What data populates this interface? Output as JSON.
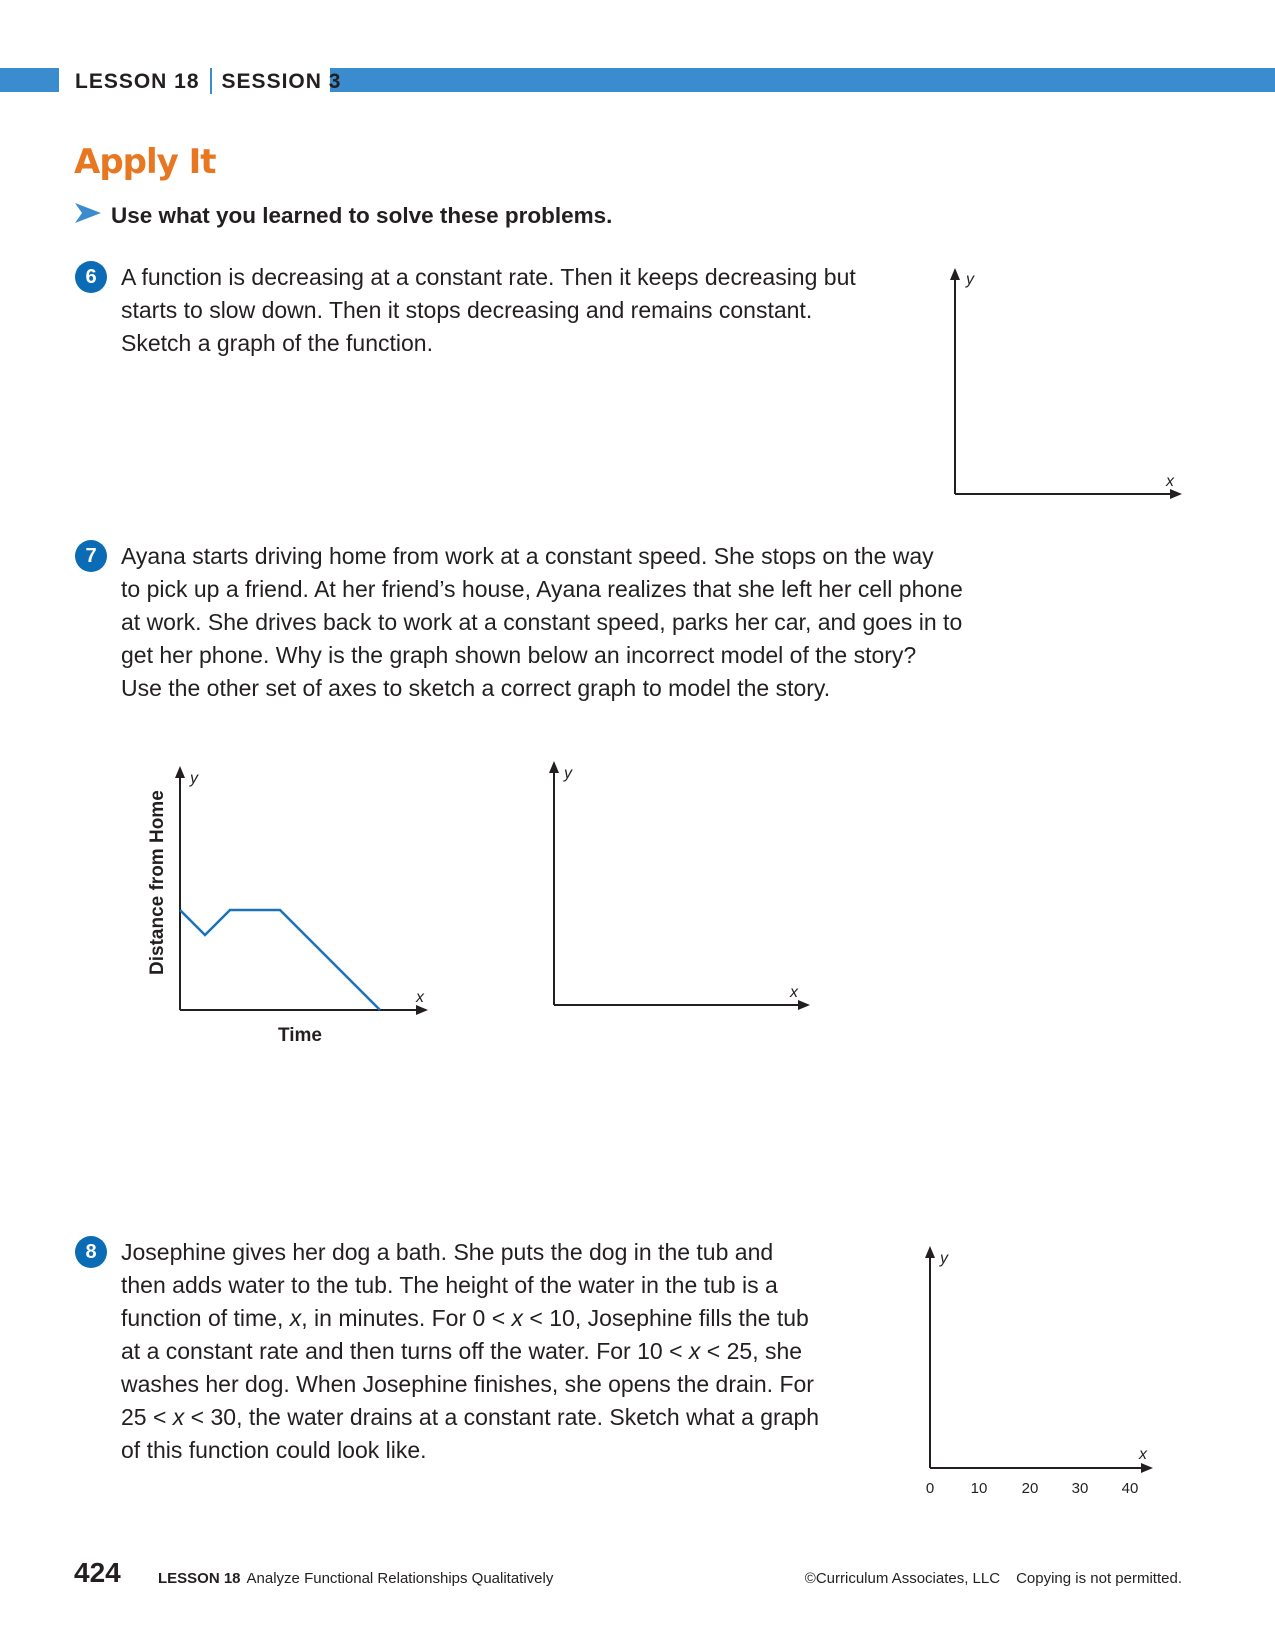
{
  "header": {
    "lesson": "LESSON 18",
    "session": "SESSION 3"
  },
  "title": "Apply It",
  "instruction": "Use what you learned to solve these problems.",
  "problems": [
    {
      "number": "6",
      "lines": [
        "A function is decreasing at a constant rate. Then it keeps decreasing but",
        "starts to slow down. Then it stops decreasing and remains constant.",
        "Sketch a graph of the function."
      ],
      "graph": {
        "x_label": "x",
        "y_label": "y"
      }
    },
    {
      "number": "7",
      "lines": [
        "Ayana starts driving home from work at a constant speed. She stops on the way",
        "to pick up a friend. At her friend’s house, Ayana realizes that she left her cell phone",
        "at work. She drives back to work at a constant speed, parks her car, and goes in to",
        "get her phone. Why is the graph shown below an incorrect model of the story?",
        "Use the other set of axes to sketch a correct graph to model the story."
      ],
      "graph_incorrect": {
        "x_label": "x",
        "y_label": "y",
        "x_title": "Time",
        "y_title": "Distance from Home"
      },
      "graph_blank": {
        "x_label": "x",
        "y_label": "y"
      }
    },
    {
      "number": "8",
      "lines": [
        "Josephine gives her dog a bath. She puts the dog in the tub and",
        "then adds water to the tub. The height of the water in the tub is a",
        "function of time, x, in minutes. For 0 < x < 10, Josephine fills the tub",
        "at a constant rate and then turns off the water. For 10 < x < 25, she",
        "washes her dog. When Josephine finishes, she opens the drain. For",
        "25 < x < 30, the water drains at a constant rate. Sketch what a graph",
        "of this function could look like."
      ],
      "graph": {
        "x_label": "x",
        "y_label": "y",
        "x_ticks": [
          "0",
          "10",
          "20",
          "30",
          "40"
        ]
      }
    }
  ],
  "footer": {
    "page_number": "424",
    "lesson": "LESSON 18",
    "lesson_title": "Analyze Functional Relationships Qualitatively",
    "copyright": "©Curriculum Associates, LLC",
    "notice": "Copying is not permitted."
  },
  "colors": {
    "accent_blue": "#3a8ccf",
    "badge_blue": "#0b6cb5",
    "title_orange": "#e87722",
    "line_blue": "#1a73b8"
  }
}
